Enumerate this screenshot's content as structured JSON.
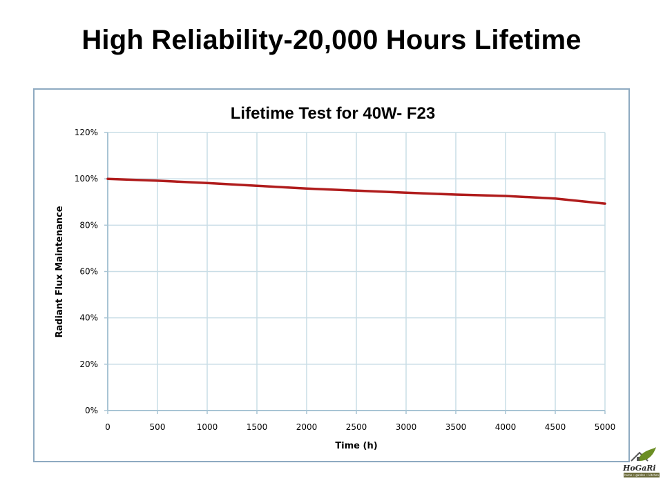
{
  "slide": {
    "title": "High Reliability-20,000 Hours Lifetime"
  },
  "logo": {
    "name": "HoGaRi",
    "tagline": "home • garden • kitchen"
  },
  "colors": {
    "line": "#b01c1c",
    "grid": "#c9dde6",
    "frame": "#8eaac1",
    "axis": "#a8c4d4"
  },
  "chart_data": {
    "type": "line",
    "title": "Lifetime Test for 40W- F23",
    "xlabel": "Time (h)",
    "ylabel": "Radiant Flux Maintenance",
    "xlim": [
      0,
      5000
    ],
    "ylim": [
      0,
      120
    ],
    "x_ticks": [
      0,
      500,
      1000,
      1500,
      2000,
      2500,
      3000,
      3500,
      4000,
      4500,
      5000
    ],
    "x_tick_labels": [
      "0",
      "500",
      "1000",
      "1500",
      "2000",
      "2500",
      "3000",
      "3500",
      "4000",
      "4500",
      "5000"
    ],
    "y_ticks": [
      0,
      20,
      40,
      60,
      80,
      100,
      120
    ],
    "y_tick_labels": [
      "0%",
      "20%",
      "40%",
      "60%",
      "80%",
      "100%",
      "120%"
    ],
    "grid": true,
    "series": [
      {
        "name": "Radiant Flux Maintenance",
        "x": [
          0,
          500,
          1000,
          1500,
          2000,
          2500,
          3000,
          3500,
          4000,
          4500,
          5000
        ],
        "y": [
          100,
          99.2,
          98.2,
          97,
          95.8,
          94.9,
          94,
          93.2,
          92.6,
          91.5,
          89.3
        ]
      }
    ]
  }
}
